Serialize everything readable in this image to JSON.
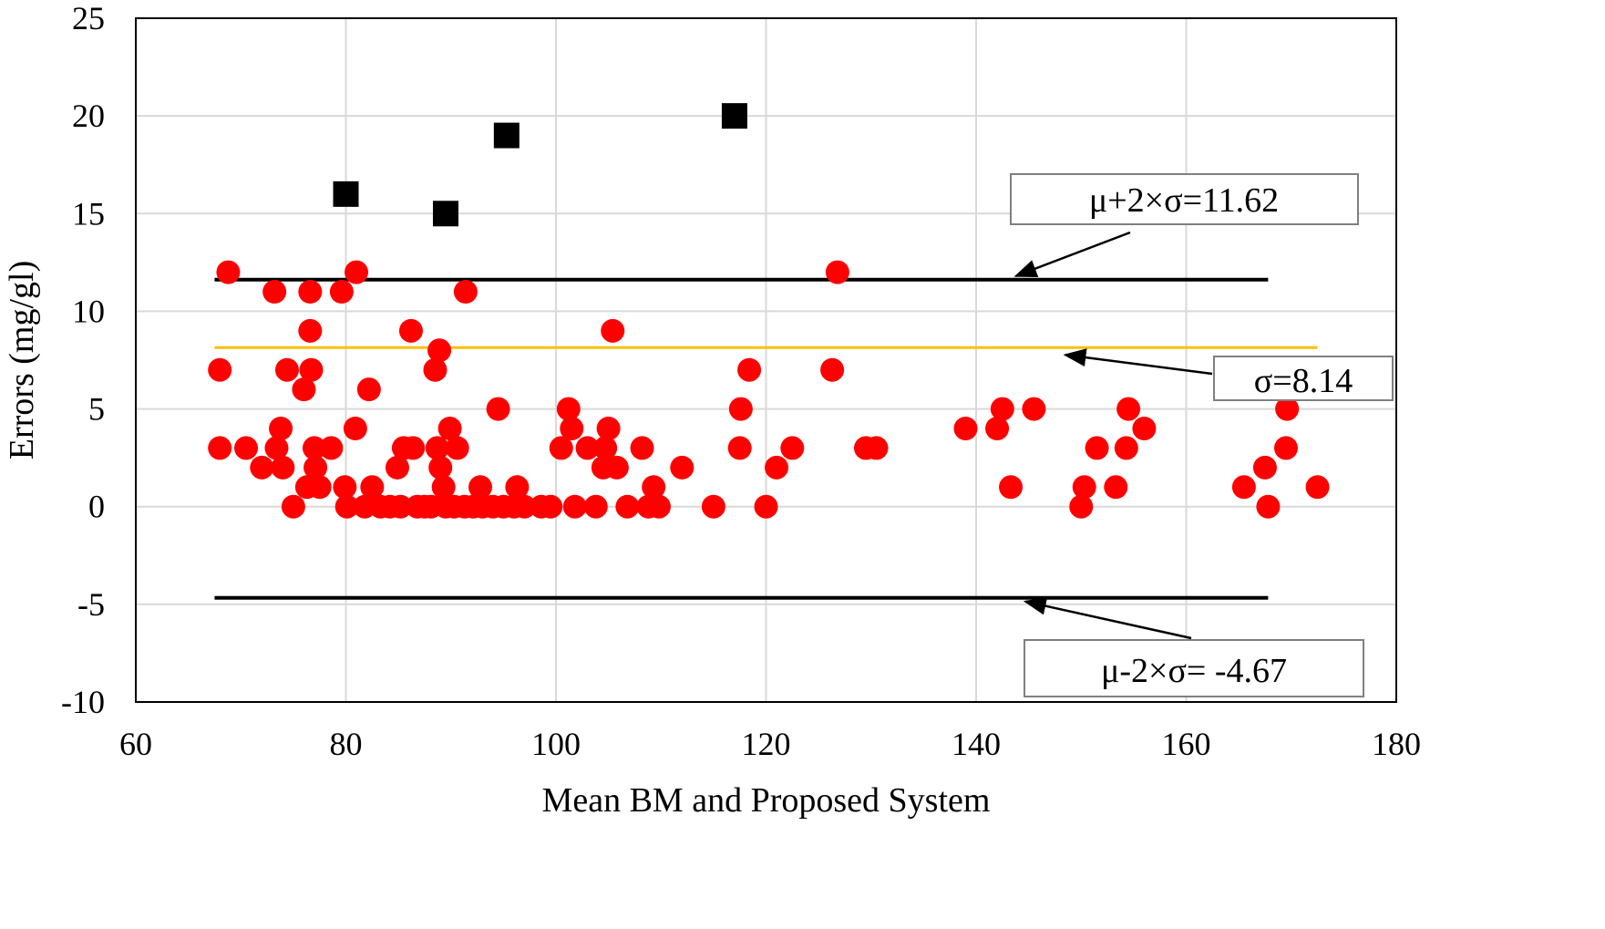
{
  "chart_data": {
    "type": "scatter",
    "title": "",
    "xlabel": "Mean BM and Proposed System",
    "ylabel": "Errors  (mg/gl)",
    "xlim": [
      60,
      180
    ],
    "ylim": [
      -10,
      25
    ],
    "xticks": [
      "60",
      "80",
      "100",
      "120",
      "140",
      "160",
      "180"
    ],
    "yticks": [
      "-10",
      "-5",
      "0",
      "5",
      "10",
      "15",
      "20",
      "25"
    ],
    "grid": true,
    "legend": "none",
    "colors": {
      "inliers": "#ff0000",
      "outliers": "#000000",
      "limit_lines": "#000000",
      "sigma_line": "#ffc000",
      "grid": "#d9d9d9"
    },
    "series": [
      {
        "marker": "circle",
        "points": [
          [
            68,
            7
          ],
          [
            68,
            3
          ],
          [
            68.8,
            12
          ],
          [
            70.5,
            3
          ],
          [
            72,
            2
          ],
          [
            73.2,
            11
          ],
          [
            73.4,
            3
          ],
          [
            73.8,
            4
          ],
          [
            74,
            2
          ],
          [
            74.4,
            7
          ],
          [
            75,
            0
          ],
          [
            76,
            6
          ],
          [
            76.3,
            1
          ],
          [
            76.6,
            11
          ],
          [
            76.6,
            9
          ],
          [
            76.7,
            7
          ],
          [
            77,
            3
          ],
          [
            77.1,
            2
          ],
          [
            77.5,
            1
          ],
          [
            78.6,
            3
          ],
          [
            79.6,
            11
          ],
          [
            79.9,
            1
          ],
          [
            80.1,
            0
          ],
          [
            80.9,
            4
          ],
          [
            81,
            12
          ],
          [
            81.8,
            0
          ],
          [
            82.2,
            6
          ],
          [
            82.5,
            1
          ],
          [
            83.3,
            0
          ],
          [
            84.2,
            0
          ],
          [
            84.9,
            2
          ],
          [
            85.2,
            0
          ],
          [
            85.5,
            3
          ],
          [
            86.2,
            9
          ],
          [
            86.4,
            3
          ],
          [
            86.8,
            0
          ],
          [
            87.5,
            0
          ],
          [
            88.1,
            0
          ],
          [
            88.5,
            7
          ],
          [
            88.7,
            3
          ],
          [
            88.9,
            8
          ],
          [
            89,
            2
          ],
          [
            89.3,
            1
          ],
          [
            89.5,
            0
          ],
          [
            89.9,
            4
          ],
          [
            90.3,
            0
          ],
          [
            90.6,
            3
          ],
          [
            91.3,
            0
          ],
          [
            91.4,
            11
          ],
          [
            92.1,
            0
          ],
          [
            92.8,
            1
          ],
          [
            93,
            0
          ],
          [
            94,
            0
          ],
          [
            94.5,
            5
          ],
          [
            95,
            0
          ],
          [
            96,
            0
          ],
          [
            96.3,
            1
          ],
          [
            97,
            0
          ],
          [
            98.6,
            0
          ],
          [
            99.5,
            0
          ],
          [
            100.5,
            3
          ],
          [
            101.2,
            5
          ],
          [
            101.5,
            4
          ],
          [
            101.8,
            0
          ],
          [
            103,
            3
          ],
          [
            103.8,
            0
          ],
          [
            104.5,
            2
          ],
          [
            104.7,
            3
          ],
          [
            105,
            4
          ],
          [
            105.4,
            9
          ],
          [
            105.8,
            2
          ],
          [
            106.8,
            0
          ],
          [
            108.2,
            3
          ],
          [
            108.8,
            0
          ],
          [
            109.3,
            1
          ],
          [
            109.8,
            0
          ],
          [
            112,
            2
          ],
          [
            115,
            0
          ],
          [
            117.5,
            3
          ],
          [
            117.6,
            5
          ],
          [
            118.4,
            7
          ],
          [
            120,
            0
          ],
          [
            121,
            2
          ],
          [
            122.5,
            3
          ],
          [
            126.3,
            7
          ],
          [
            126.8,
            12
          ],
          [
            129.5,
            3
          ],
          [
            130.5,
            3
          ],
          [
            139,
            4
          ],
          [
            142,
            4
          ],
          [
            142.5,
            5
          ],
          [
            143.3,
            1
          ],
          [
            145.5,
            5
          ],
          [
            150,
            0
          ],
          [
            150.3,
            1
          ],
          [
            151.5,
            3
          ],
          [
            153.3,
            1
          ],
          [
            154.3,
            3
          ],
          [
            154.5,
            5
          ],
          [
            156,
            4
          ],
          [
            165.5,
            1
          ],
          [
            167.5,
            2
          ],
          [
            167.8,
            0
          ],
          [
            169.5,
            3
          ],
          [
            169.6,
            5
          ],
          [
            172.5,
            1
          ]
        ]
      },
      {
        "marker": "square",
        "points": [
          [
            80,
            16
          ],
          [
            89.5,
            15
          ],
          [
            95.3,
            19
          ],
          [
            117,
            20
          ]
        ]
      }
    ],
    "lines": [
      {
        "y": 11.62,
        "x_range": [
          67.5,
          167.8
        ]
      },
      {
        "y": 8.14,
        "x_range": [
          67.5,
          172.5
        ]
      },
      {
        "y": -4.67,
        "x_range": [
          67.5,
          167.8
        ]
      }
    ],
    "annotations": [
      {
        "text": "μ+2×σ=11.62",
        "arrow_to": [
          143.8,
          11.62
        ]
      },
      {
        "text": "σ=8.14",
        "arrow_to": [
          148.5,
          8.14
        ]
      },
      {
        "text": "μ-2×σ= -4.67",
        "arrow_to": [
          144.7,
          -4.67
        ]
      }
    ]
  }
}
